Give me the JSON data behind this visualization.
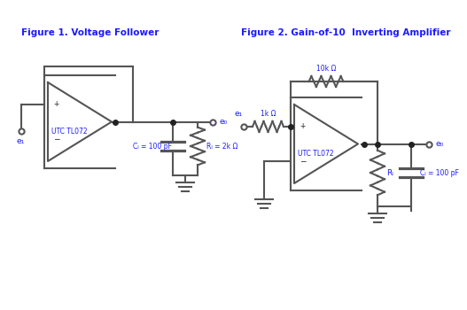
{
  "fig1_title": "Figure 1. Voltage Follower",
  "fig2_title": "Figure 2. Gain-of-10  Inverting Amplifier",
  "title_color": "#1a1aff",
  "line_color": "#555555",
  "text_color": "#1a1aff",
  "dot_color": "#222222",
  "background": "#FFFFFF",
  "label_ei1": "e₁",
  "label_eo1": "e₀",
  "label_cl1": "Cₗ = 100 pF",
  "label_rl1": "Rₗ = 2k Ω",
  "label_utc1": "UTC TL072",
  "label_1kohm": "1k Ω",
  "label_10kohm": "10k Ω",
  "label_rl2": "Rₗ",
  "label_cl2": "Cₗ = 100 pF",
  "label_utc2": "UTC TL072",
  "label_ei2": "e₁",
  "label_eo2": "e₀"
}
